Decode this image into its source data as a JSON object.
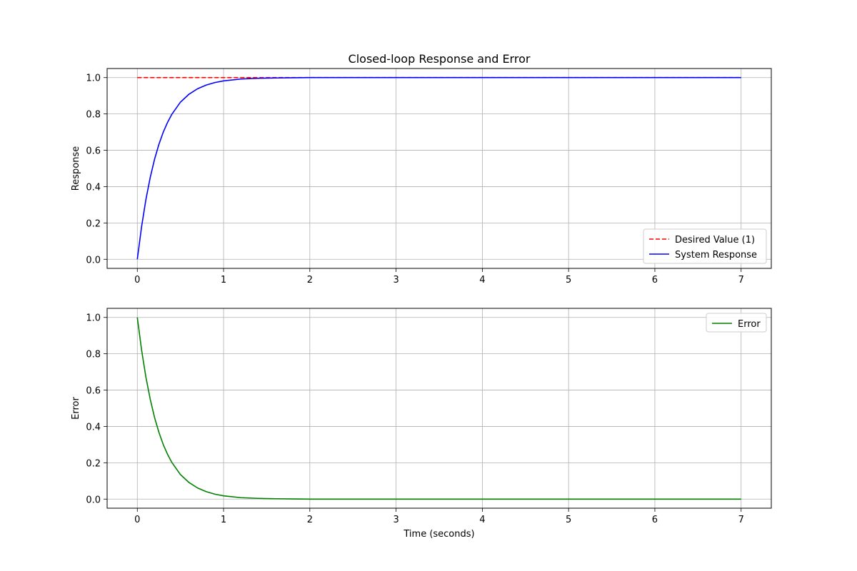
{
  "chart_data": [
    {
      "type": "line",
      "title": "Closed-loop Response and Error",
      "xlabel": "",
      "ylabel": "Response",
      "xlim": [
        -0.35,
        7.35
      ],
      "ylim": [
        -0.05,
        1.05
      ],
      "xticks": [
        0,
        1,
        2,
        3,
        4,
        5,
        6,
        7
      ],
      "xtick_labels": [
        "0",
        "1",
        "2",
        "3",
        "4",
        "5",
        "6",
        "7"
      ],
      "yticks": [
        0.0,
        0.2,
        0.4,
        0.6,
        0.8,
        1.0
      ],
      "ytick_labels": [
        "0.0",
        "0.2",
        "0.4",
        "0.6",
        "0.8",
        "1.0"
      ],
      "grid": true,
      "legend_position": "lower-right",
      "series": [
        {
          "name": "Desired Value (1)",
          "color": "#ff0000",
          "style": "dashed",
          "x": [
            0,
            7
          ],
          "y": [
            1.0,
            1.0
          ]
        },
        {
          "name": "System Response",
          "color": "#0000ff",
          "style": "solid",
          "x": [
            0,
            0.05,
            0.1,
            0.15,
            0.2,
            0.25,
            0.3,
            0.35,
            0.4,
            0.5,
            0.6,
            0.7,
            0.8,
            0.9,
            1.0,
            1.2,
            1.4,
            1.6,
            1.8,
            2.0,
            2.5,
            3.0,
            4.0,
            5.0,
            6.0,
            7.0
          ],
          "y": [
            0.0,
            0.181,
            0.33,
            0.451,
            0.551,
            0.632,
            0.699,
            0.753,
            0.798,
            0.865,
            0.909,
            0.939,
            0.959,
            0.973,
            0.982,
            0.992,
            0.996,
            0.998,
            0.999,
            1.0,
            1.0,
            1.0,
            1.0,
            1.0,
            1.0,
            1.0
          ]
        }
      ]
    },
    {
      "type": "line",
      "title": "",
      "xlabel": "Time (seconds)",
      "ylabel": "Error",
      "xlim": [
        -0.35,
        7.35
      ],
      "ylim": [
        -0.05,
        1.05
      ],
      "xticks": [
        0,
        1,
        2,
        3,
        4,
        5,
        6,
        7
      ],
      "xtick_labels": [
        "0",
        "1",
        "2",
        "3",
        "4",
        "5",
        "6",
        "7"
      ],
      "yticks": [
        0.0,
        0.2,
        0.4,
        0.6,
        0.8,
        1.0
      ],
      "ytick_labels": [
        "0.0",
        "0.2",
        "0.4",
        "0.6",
        "0.8",
        "1.0"
      ],
      "grid": true,
      "legend_position": "upper-right",
      "series": [
        {
          "name": "Error",
          "color": "#008000",
          "style": "solid",
          "x": [
            0,
            0.05,
            0.1,
            0.15,
            0.2,
            0.25,
            0.3,
            0.35,
            0.4,
            0.5,
            0.6,
            0.7,
            0.8,
            0.9,
            1.0,
            1.2,
            1.4,
            1.6,
            1.8,
            2.0,
            2.5,
            3.0,
            4.0,
            5.0,
            6.0,
            7.0
          ],
          "y": [
            1.0,
            0.819,
            0.67,
            0.549,
            0.449,
            0.368,
            0.301,
            0.247,
            0.202,
            0.135,
            0.091,
            0.061,
            0.041,
            0.027,
            0.018,
            0.008,
            0.004,
            0.002,
            0.001,
            0.0,
            0.0,
            0.0,
            0.0,
            0.0,
            0.0,
            0.0
          ]
        }
      ]
    }
  ]
}
